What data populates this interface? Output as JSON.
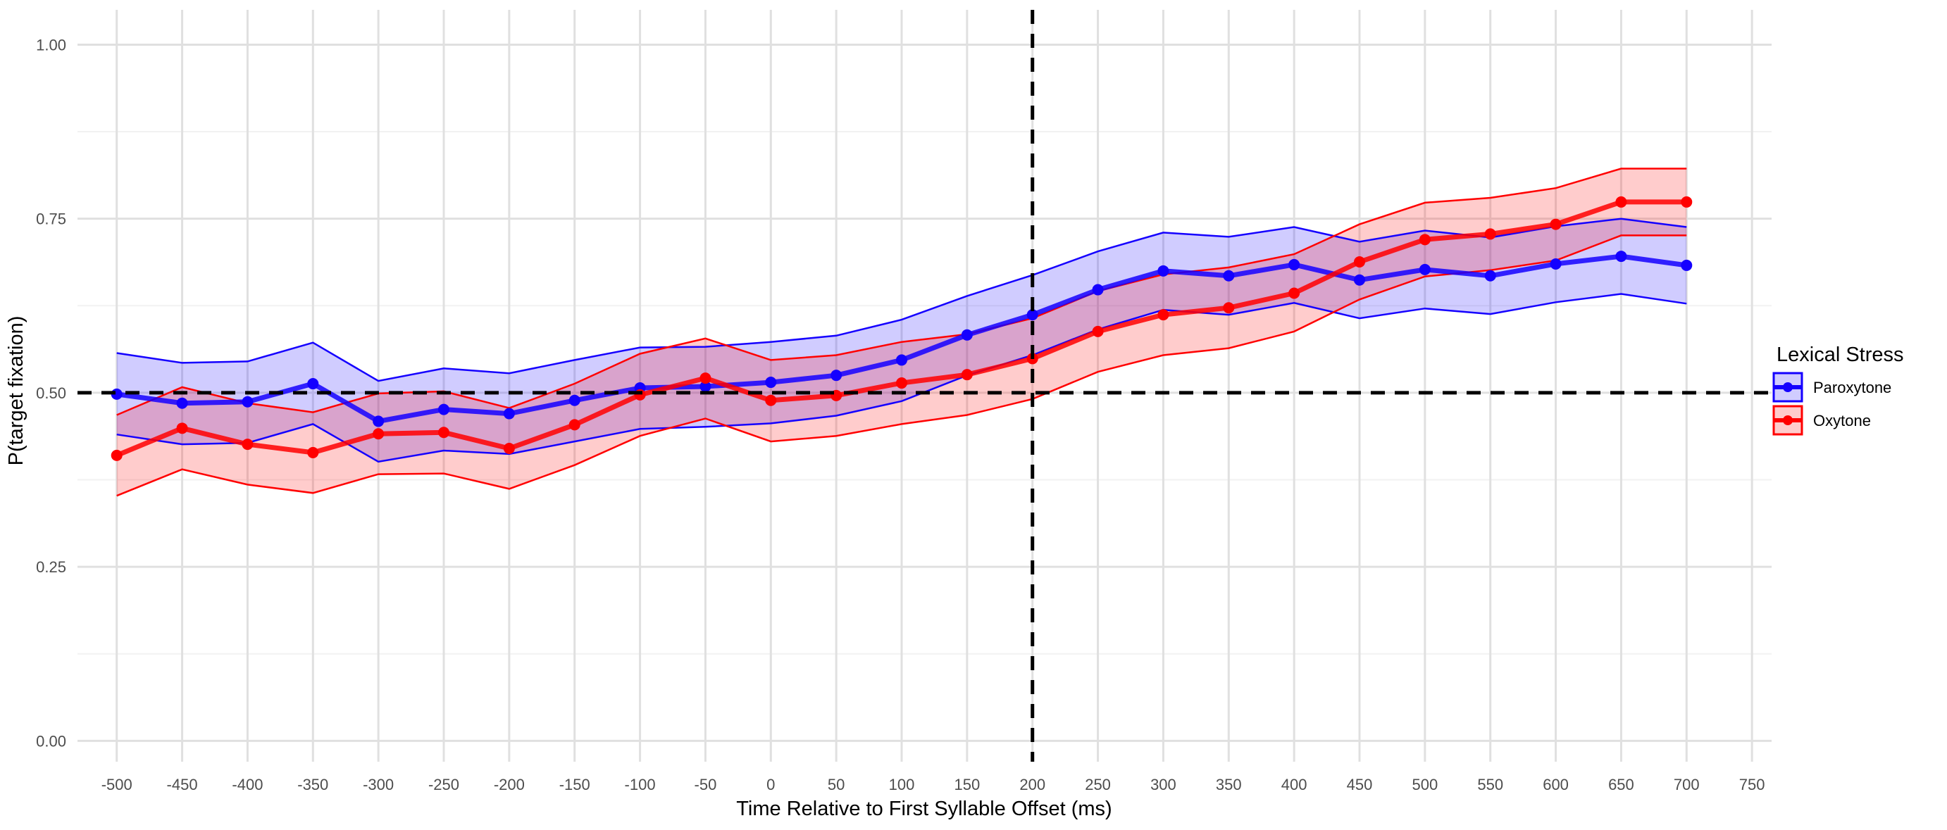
{
  "chart_data": {
    "type": "line",
    "title": "",
    "xlabel": "Time Relative to First Syllable Offset (ms)",
    "ylabel": "P(target fixation)",
    "xlim": [
      -530,
      765
    ],
    "ylim": [
      -0.03,
      1.05
    ],
    "x_ticks": [
      -500,
      -450,
      -400,
      -350,
      -300,
      -250,
      -200,
      -150,
      -100,
      -50,
      0,
      50,
      100,
      150,
      200,
      250,
      300,
      350,
      400,
      450,
      500,
      550,
      600,
      650,
      700,
      750
    ],
    "y_ticks": [
      0,
      0.25,
      0.5,
      0.75,
      1.0
    ],
    "y_tick_labels": [
      "0.00",
      "0.25",
      "0.50",
      "0.75",
      "1.00"
    ],
    "grid": true,
    "reference_lines": {
      "horizontal_y": 0.5,
      "vertical_x": 200,
      "style": "dashed"
    },
    "legend": {
      "title": "Lexical Stress",
      "position": "right"
    },
    "x": [
      -500,
      -450,
      -400,
      -350,
      -300,
      -250,
      -200,
      -150,
      -100,
      -50,
      0,
      50,
      100,
      150,
      200,
      250,
      300,
      350,
      400,
      450,
      500,
      550,
      600,
      650,
      700
    ],
    "series": [
      {
        "name": "Paroxytone",
        "color": "#1400ff",
        "fill": "#ccccff",
        "values": [
          0.498,
          0.485,
          0.487,
          0.513,
          0.459,
          0.476,
          0.47,
          0.489,
          0.507,
          0.509,
          0.515,
          0.525,
          0.547,
          0.583,
          0.612,
          0.648,
          0.675,
          0.668,
          0.684,
          0.662,
          0.677,
          0.668,
          0.685,
          0.696,
          0.683
        ],
        "upper": [
          0.557,
          0.543,
          0.545,
          0.572,
          0.517,
          0.535,
          0.528,
          0.547,
          0.565,
          0.566,
          0.573,
          0.582,
          0.605,
          0.639,
          0.669,
          0.703,
          0.73,
          0.724,
          0.738,
          0.717,
          0.733,
          0.723,
          0.739,
          0.75,
          0.738
        ],
        "lower": [
          0.44,
          0.426,
          0.428,
          0.455,
          0.401,
          0.417,
          0.412,
          0.43,
          0.448,
          0.451,
          0.456,
          0.467,
          0.488,
          0.525,
          0.554,
          0.591,
          0.619,
          0.612,
          0.629,
          0.607,
          0.621,
          0.613,
          0.63,
          0.642,
          0.628
        ]
      },
      {
        "name": "Oxytone",
        "color": "#ff0000",
        "fill": "#ffcccc",
        "values": [
          0.41,
          0.449,
          0.426,
          0.414,
          0.441,
          0.443,
          0.42,
          0.454,
          0.497,
          0.521,
          0.489,
          0.496,
          0.514,
          0.526,
          0.549,
          0.588,
          0.612,
          0.622,
          0.643,
          0.688,
          0.72,
          0.728,
          0.742,
          0.774,
          0.774
        ]
      }
    ],
    "oxytone_band": {
      "upper": [
        0.468,
        0.508,
        0.485,
        0.472,
        0.499,
        0.502,
        0.478,
        0.513,
        0.556,
        0.578,
        0.547,
        0.554,
        0.573,
        0.584,
        0.607,
        0.646,
        0.67,
        0.68,
        0.699,
        0.742,
        0.773,
        0.78,
        0.794,
        0.822,
        0.822
      ],
      "lower": [
        0.352,
        0.39,
        0.368,
        0.356,
        0.383,
        0.384,
        0.362,
        0.396,
        0.438,
        0.463,
        0.43,
        0.438,
        0.455,
        0.468,
        0.491,
        0.53,
        0.554,
        0.564,
        0.588,
        0.634,
        0.667,
        0.676,
        0.69,
        0.726,
        0.726
      ]
    }
  }
}
